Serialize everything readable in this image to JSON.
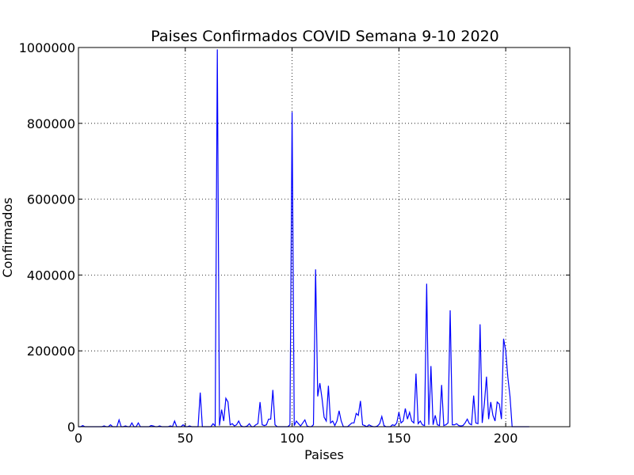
{
  "chart_data": {
    "type": "line",
    "title": "Paises Confirmados COVID Semana 9-10 2020",
    "x_label": "Paises",
    "y_label": "Confirmados",
    "color": "#0000ff",
    "values": [
      0,
      0,
      3000,
      0,
      0,
      0,
      0,
      0,
      0,
      0,
      0,
      0,
      2000,
      0,
      0,
      5000,
      0,
      0,
      0,
      18000,
      0,
      0,
      2000,
      0,
      0,
      10000,
      0,
      0,
      10000,
      0,
      0,
      0,
      0,
      0,
      3000,
      2000,
      0,
      0,
      2000,
      0,
      0,
      0,
      0,
      2000,
      0,
      15000,
      0,
      0,
      0,
      5000,
      0,
      0,
      2000,
      0,
      0,
      0,
      0,
      90000,
      0,
      0,
      0,
      0,
      0,
      8000,
      2000,
      995000,
      3000,
      45000,
      15000,
      75000,
      65000,
      5000,
      8000,
      2000,
      5000,
      15000,
      3000,
      0,
      0,
      2000,
      8000,
      0,
      0,
      5000,
      8000,
      65000,
      5000,
      3000,
      5000,
      20000,
      20000,
      97000,
      5000,
      0,
      0,
      0,
      0,
      0,
      0,
      5000,
      830000,
      3000,
      15000,
      8000,
      2000,
      10000,
      18000,
      2000,
      0,
      0,
      5000,
      415000,
      80000,
      115000,
      75000,
      25000,
      15000,
      108000,
      10000,
      15000,
      3000,
      15000,
      42000,
      15000,
      0,
      0,
      0,
      5000,
      10000,
      10000,
      35000,
      30000,
      68000,
      5000,
      3000,
      0,
      5000,
      2000,
      0,
      0,
      2000,
      8000,
      27000,
      3000,
      0,
      0,
      0,
      5000,
      3000,
      10000,
      38000,
      10000,
      15000,
      48000,
      20000,
      38000,
      15000,
      10000,
      140000,
      8000,
      15000,
      5000,
      3000,
      377000,
      5000,
      160000,
      5000,
      30000,
      5000,
      3000,
      110000,
      3000,
      5000,
      10000,
      307000,
      5000,
      5000,
      8000,
      3000,
      2000,
      3000,
      10000,
      20000,
      8000,
      5000,
      82000,
      10000,
      8000,
      270000,
      10000,
      60000,
      132000,
      20000,
      65000,
      30000,
      15000,
      65000,
      60000,
      20000,
      232000,
      200000,
      130000,
      80000,
      0,
      0,
      0,
      0,
      0,
      0,
      0,
      0,
      0
    ],
    "xlim": [
      0,
      230
    ],
    "xticks": [
      0,
      50,
      100,
      150,
      200
    ],
    "ylim": [
      0,
      1000000
    ],
    "yticks": [
      0,
      200000,
      400000,
      600000,
      800000,
      1000000
    ],
    "grid": true
  }
}
